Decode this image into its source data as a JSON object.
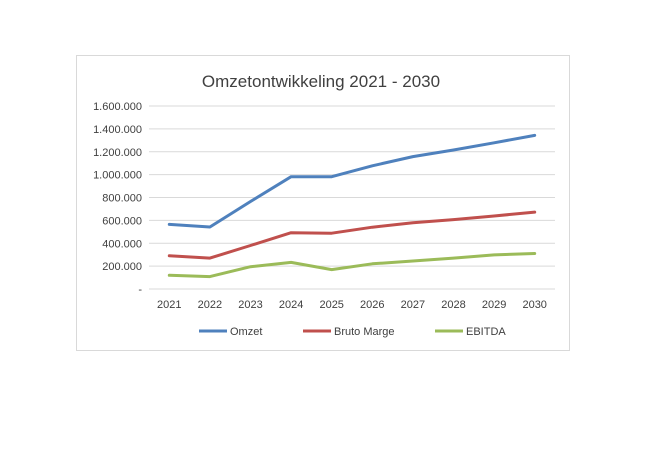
{
  "chart_data": {
    "type": "line",
    "title": "Omzetontwikkeling 2021 - 2030",
    "xlabel": "",
    "ylabel": "",
    "categories": [
      "2021",
      "2022",
      "2023",
      "2024",
      "2025",
      "2026",
      "2027",
      "2028",
      "2029",
      "2030"
    ],
    "series": [
      {
        "name": "Omzet",
        "color": "#4f81bd",
        "values": [
          565000,
          542000,
          765000,
          982000,
          982000,
          1077000,
          1158000,
          1215000,
          1278000,
          1343000
        ]
      },
      {
        "name": "Bruto Marge",
        "color": "#c0504d",
        "values": [
          290000,
          270000,
          380000,
          492000,
          488000,
          540000,
          580000,
          607000,
          638000,
          672000
        ]
      },
      {
        "name": "EBITDA",
        "color": "#9bbb59",
        "values": [
          120000,
          108000,
          195000,
          233000,
          170000,
          220000,
          245000,
          270000,
          298000,
          310000
        ]
      }
    ],
    "ylim": [
      0,
      1600000
    ],
    "ytick_labels": [
      "-",
      "200.000",
      "400.000",
      "600.000",
      "800.000",
      "1.000.000",
      "1.200.000",
      "1.400.000",
      "1.600.000"
    ],
    "grid": true,
    "legend": "bottom"
  }
}
